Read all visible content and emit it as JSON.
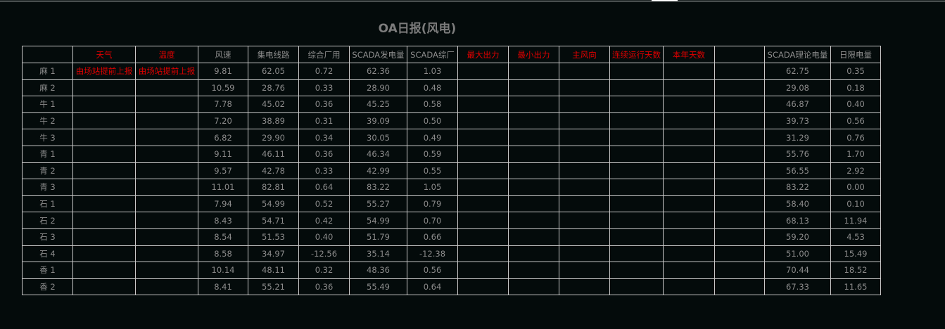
{
  "title": "OA日报(风电)",
  "colors": {
    "background": "#040b0b",
    "text": "#8c8c8c",
    "highlight": "#e00000",
    "border": "#c8c8c8"
  },
  "headers": [
    {
      "label": "",
      "red": false
    },
    {
      "label": "天气",
      "red": true
    },
    {
      "label": "温度",
      "red": true
    },
    {
      "label": "风速",
      "red": false
    },
    {
      "label": "集电线路",
      "red": false
    },
    {
      "label": "综合厂用",
      "red": false
    },
    {
      "label": "SCADA发电量",
      "red": false
    },
    {
      "label": "SCADA综厂",
      "red": false
    },
    {
      "label": "最大出力",
      "red": true
    },
    {
      "label": "最小出力",
      "red": true
    },
    {
      "label": "主风向",
      "red": true
    },
    {
      "label": "连续运行天数",
      "red": true
    },
    {
      "label": "本年天数",
      "red": true
    },
    {
      "label": "",
      "red": false
    },
    {
      "label": "SCADA理论电量",
      "red": false
    },
    {
      "label": "日限电量",
      "red": false
    }
  ],
  "rows": [
    [
      "麻 1",
      "由场站提前上报",
      "由场站提前上报",
      "9.81",
      "62.05",
      "0.72",
      "62.36",
      "1.03",
      "",
      "",
      "",
      "",
      "",
      "",
      "62.75",
      "0.35"
    ],
    [
      "麻 2",
      "",
      "",
      "10.59",
      "28.76",
      "0.33",
      "28.90",
      "0.48",
      "",
      "",
      "",
      "",
      "",
      "",
      "29.08",
      "0.18"
    ],
    [
      "牛 1",
      "",
      "",
      "7.78",
      "45.02",
      "0.36",
      "45.25",
      "0.58",
      "",
      "",
      "",
      "",
      "",
      "",
      "46.87",
      "0.40"
    ],
    [
      "牛 2",
      "",
      "",
      "7.20",
      "38.89",
      "0.31",
      "39.09",
      "0.50",
      "",
      "",
      "",
      "",
      "",
      "",
      "39.73",
      "0.56"
    ],
    [
      "牛 3",
      "",
      "",
      "6.82",
      "29.90",
      "0.34",
      "30.05",
      "0.49",
      "",
      "",
      "",
      "",
      "",
      "",
      "31.29",
      "0.76"
    ],
    [
      "青 1",
      "",
      "",
      "9.11",
      "46.11",
      "0.36",
      "46.34",
      "0.59",
      "",
      "",
      "",
      "",
      "",
      "",
      "55.76",
      "1.70"
    ],
    [
      "青 2",
      "",
      "",
      "9.57",
      "42.78",
      "0.33",
      "42.99",
      "0.55",
      "",
      "",
      "",
      "",
      "",
      "",
      "56.55",
      "2.92"
    ],
    [
      "青 3",
      "",
      "",
      "11.01",
      "82.81",
      "0.64",
      "83.22",
      "1.05",
      "",
      "",
      "",
      "",
      "",
      "",
      "83.22",
      "0.00"
    ],
    [
      "石 1",
      "",
      "",
      "7.94",
      "54.99",
      "0.52",
      "55.27",
      "0.79",
      "",
      "",
      "",
      "",
      "",
      "",
      "58.40",
      "0.10"
    ],
    [
      "石 2",
      "",
      "",
      "8.43",
      "54.71",
      "0.42",
      "54.99",
      "0.70",
      "",
      "",
      "",
      "",
      "",
      "",
      "68.13",
      "11.94"
    ],
    [
      "石 3",
      "",
      "",
      "8.54",
      "51.53",
      "0.40",
      "51.79",
      "0.66",
      "",
      "",
      "",
      "",
      "",
      "",
      "59.20",
      "4.53"
    ],
    [
      "石 4",
      "",
      "",
      "8.58",
      "34.97",
      "-12.56",
      "35.14",
      "-12.38",
      "",
      "",
      "",
      "",
      "",
      "",
      "51.00",
      "15.49"
    ],
    [
      "香 1",
      "",
      "",
      "10.14",
      "48.11",
      "0.32",
      "48.36",
      "0.56",
      "",
      "",
      "",
      "",
      "",
      "",
      "70.44",
      "18.52"
    ],
    [
      "香 2",
      "",
      "",
      "8.41",
      "55.21",
      "0.36",
      "55.49",
      "0.64",
      "",
      "",
      "",
      "",
      "",
      "",
      "67.33",
      "11.65"
    ]
  ]
}
